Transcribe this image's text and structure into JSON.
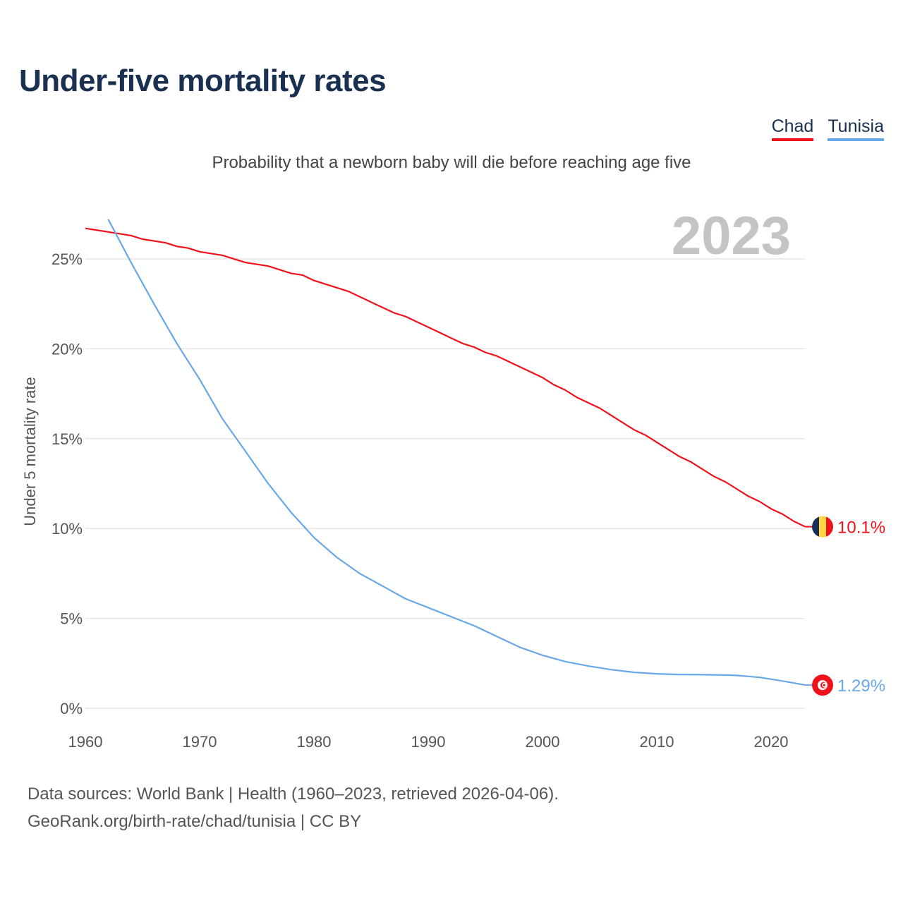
{
  "chart_data": {
    "type": "line",
    "title": "Under-five mortality rates",
    "subtitle": "Probability that a newborn baby will die before reaching age five",
    "ylabel": "Under 5 mortality rate",
    "xlabel": "",
    "year_label": "2023",
    "xlim": [
      1960,
      2023
    ],
    "ylim": [
      0,
      27.5
    ],
    "x_ticks": [
      1960,
      1970,
      1980,
      1990,
      2000,
      2010,
      2020
    ],
    "y_ticks": [
      0,
      5,
      10,
      15,
      20,
      25
    ],
    "y_tick_labels": [
      "0%",
      "5%",
      "10%",
      "15%",
      "20%",
      "25%"
    ],
    "grid": true,
    "legend_position": "top-right",
    "series": [
      {
        "name": "Chad",
        "color": "#f0121b",
        "end_label": "10.1%",
        "points": [
          [
            1960,
            26.7
          ],
          [
            1964,
            26.3
          ],
          [
            1965,
            26.1
          ],
          [
            1967,
            25.9
          ],
          [
            1968,
            25.7
          ],
          [
            1969,
            25.6
          ],
          [
            1970,
            25.4
          ],
          [
            1972,
            25.2
          ],
          [
            1974,
            24.8
          ],
          [
            1976,
            24.6
          ],
          [
            1978,
            24.2
          ],
          [
            1979,
            24.1
          ],
          [
            1980,
            23.8
          ],
          [
            1983,
            23.2
          ],
          [
            1985,
            22.6
          ],
          [
            1987,
            22.0
          ],
          [
            1988,
            21.8
          ],
          [
            1990,
            21.2
          ],
          [
            1993,
            20.3
          ],
          [
            1994,
            20.1
          ],
          [
            1995,
            19.8
          ],
          [
            1996,
            19.6
          ],
          [
            1998,
            19.0
          ],
          [
            2000,
            18.4
          ],
          [
            2001,
            18.0
          ],
          [
            2002,
            17.7
          ],
          [
            2003,
            17.3
          ],
          [
            2005,
            16.7
          ],
          [
            2006,
            16.3
          ],
          [
            2008,
            15.5
          ],
          [
            2009,
            15.2
          ],
          [
            2010,
            14.8
          ],
          [
            2012,
            14.0
          ],
          [
            2013,
            13.7
          ],
          [
            2015,
            12.9
          ],
          [
            2016,
            12.6
          ],
          [
            2018,
            11.8
          ],
          [
            2019,
            11.5
          ],
          [
            2020,
            11.1
          ],
          [
            2021,
            10.8
          ],
          [
            2022,
            10.4
          ],
          [
            2023,
            10.1
          ]
        ]
      },
      {
        "name": "Tunisia",
        "color": "#69a8e8",
        "end_label": "1.29%",
        "points": [
          [
            1962,
            27.2
          ],
          [
            1964,
            24.8
          ],
          [
            1966,
            22.5
          ],
          [
            1968,
            20.3
          ],
          [
            1970,
            18.3
          ],
          [
            1972,
            16.1
          ],
          [
            1974,
            14.3
          ],
          [
            1976,
            12.5
          ],
          [
            1978,
            10.9
          ],
          [
            1980,
            9.5
          ],
          [
            1982,
            8.4
          ],
          [
            1984,
            7.5
          ],
          [
            1986,
            6.8
          ],
          [
            1988,
            6.1
          ],
          [
            1990,
            5.6
          ],
          [
            1992,
            5.1
          ],
          [
            1994,
            4.6
          ],
          [
            1996,
            4.0
          ],
          [
            1998,
            3.4
          ],
          [
            2000,
            2.95
          ],
          [
            2002,
            2.6
          ],
          [
            2004,
            2.35
          ],
          [
            2006,
            2.15
          ],
          [
            2008,
            2.0
          ],
          [
            2010,
            1.92
          ],
          [
            2012,
            1.88
          ],
          [
            2014,
            1.87
          ],
          [
            2016,
            1.85
          ],
          [
            2017,
            1.83
          ],
          [
            2019,
            1.72
          ],
          [
            2021,
            1.52
          ],
          [
            2023,
            1.29
          ]
        ]
      }
    ]
  },
  "footer": {
    "line1": "Data sources: World Bank | Health (1960–2023, retrieved 2026-04-06).",
    "line2": "GeoRank.org/birth-rate/chad/tunisia | CC BY"
  }
}
